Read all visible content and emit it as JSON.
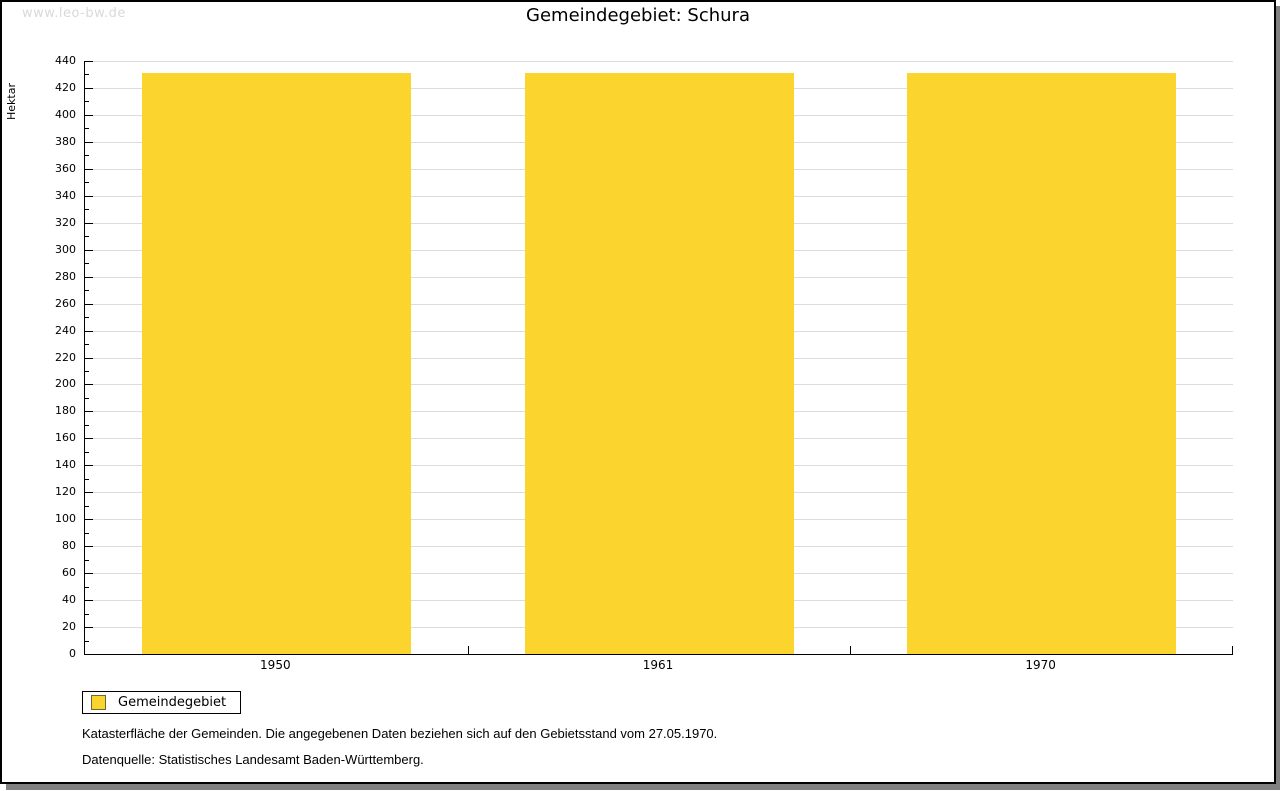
{
  "watermark": "www.leo-bw.de",
  "title": "Gemeindegebiet: Schura",
  "chart_data": {
    "type": "bar",
    "title": "Gemeindegebiet: Schura",
    "categories": [
      "1950",
      "1961",
      "1970"
    ],
    "series": [
      {
        "name": "Gemeindegebiet",
        "values": [
          431,
          431,
          431
        ]
      }
    ],
    "xlabel": "",
    "ylabel": "Hektar",
    "ylim": [
      0,
      440
    ],
    "ytick_step": 20,
    "yminor_tick_step": 10,
    "grid": true,
    "legend_position": "bottom-left",
    "bar_color": "#FCD42E"
  },
  "legend": {
    "label": "Gemeindegebiet",
    "swatch_color": "#FCD42E"
  },
  "footer": {
    "line1": "Katasterfläche der Gemeinden. Die angegebenen Daten beziehen sich auf den Gebietsstand vom 27.05.1970.",
    "line2": "Datenquelle: Statistisches Landesamt Baden-Württemberg."
  },
  "colors": {
    "bar": "#FCD42E",
    "grid": "#DCDCDC",
    "axis": "#000000",
    "shadow": "#808080",
    "watermark": "#D9D9D9",
    "background": "#FFFFFF"
  }
}
